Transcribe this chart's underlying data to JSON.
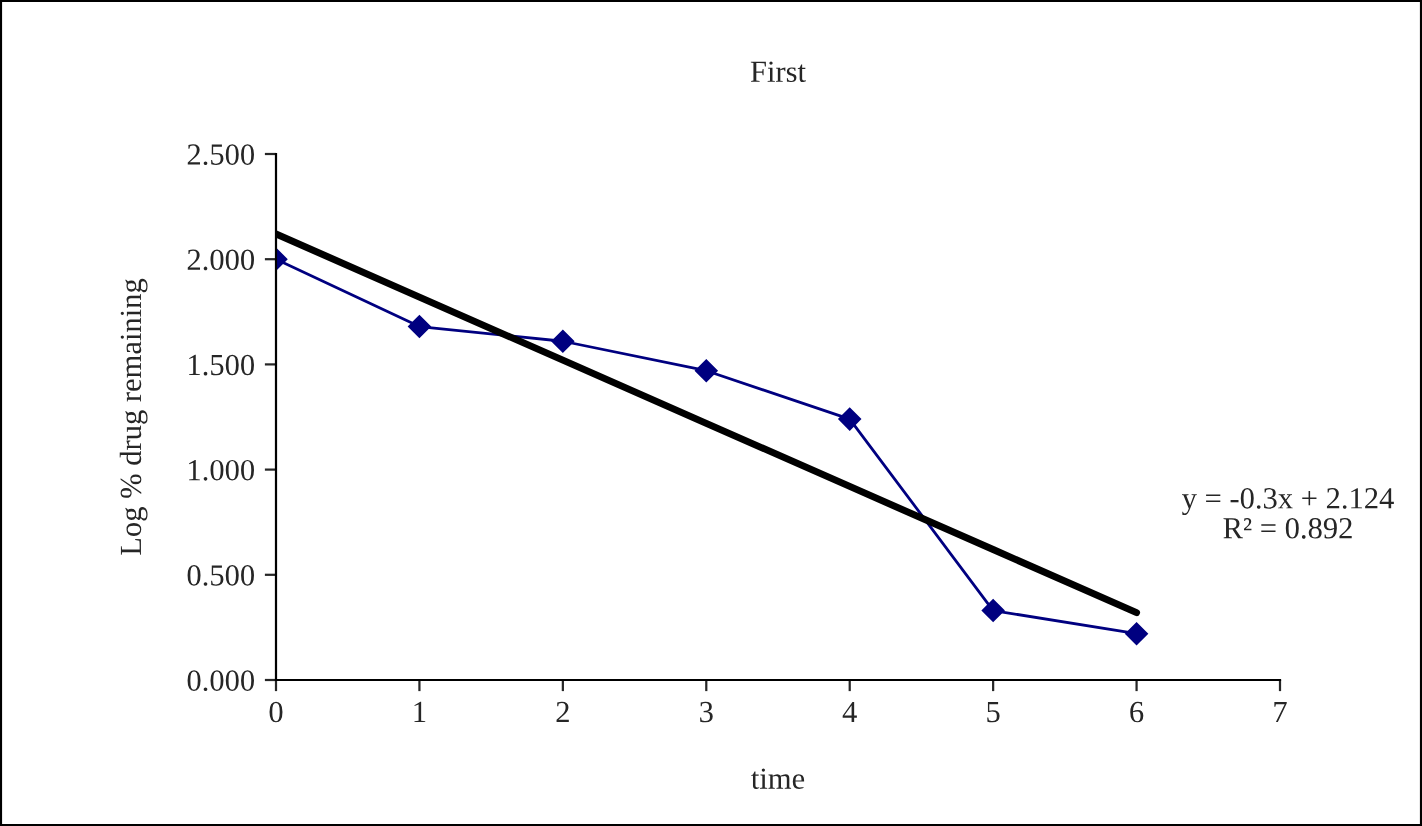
{
  "chart_data": {
    "type": "line",
    "title": "First",
    "xlabel": "time",
    "ylabel": "Log % drug remaining",
    "x": [
      0,
      1,
      2,
      3,
      4,
      5,
      6
    ],
    "series": [
      {
        "color": "#000080",
        "marker": "diamond",
        "values": [
          2.0,
          1.68,
          1.61,
          1.47,
          1.24,
          0.33,
          0.22
        ]
      },
      {
        "color": "#000000",
        "marker": "none",
        "values": [
          2.12,
          1.82,
          1.52,
          1.22,
          0.92,
          0.62,
          0.32
        ]
      }
    ],
    "xlim": [
      0,
      7
    ],
    "xticks": [
      0,
      1,
      2,
      3,
      4,
      5,
      6,
      7
    ],
    "ylim": [
      0,
      2.5
    ],
    "yticks": [
      {
        "value": 0,
        "label": "0.000"
      },
      {
        "value": 0.5,
        "label": "0.500"
      },
      {
        "value": 1,
        "label": "1.000"
      },
      {
        "value": 1.5,
        "label": "1.500"
      },
      {
        "value": 2,
        "label": "2.000"
      },
      {
        "value": 2.5,
        "label": "2.500"
      }
    ],
    "annotations": [
      "y = -0.3x + 2.124\nR² = 0.892"
    ],
    "grid": false,
    "legend": false
  }
}
